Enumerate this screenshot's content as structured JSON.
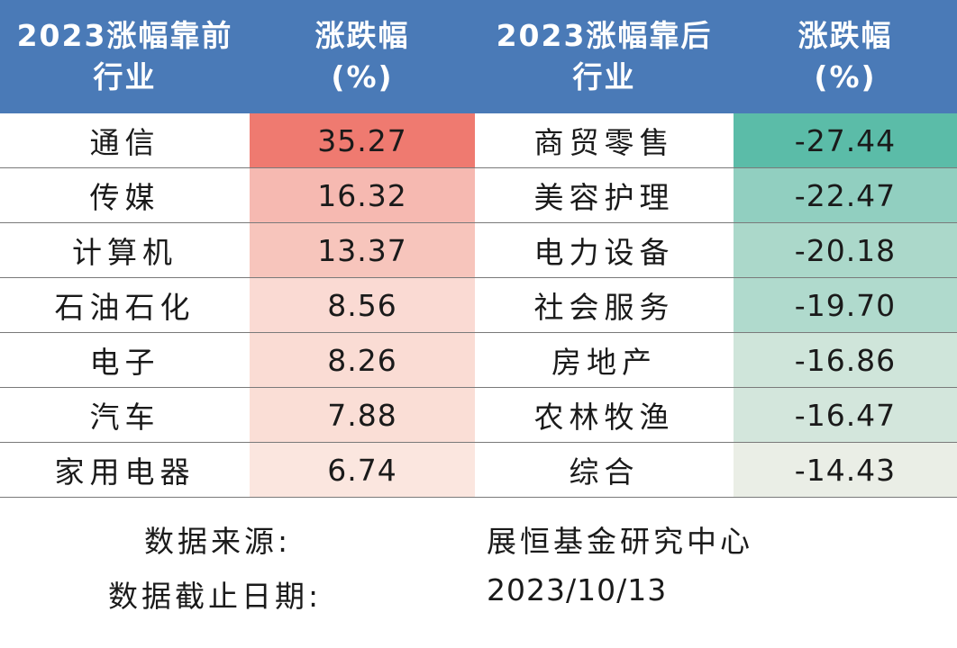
{
  "header": {
    "top_industry_line1": "2023涨幅靠前",
    "top_industry_line2": "行业",
    "top_change_line1": "涨跌幅",
    "top_change_line2": "(%)",
    "bottom_industry_line1": "2023涨幅靠后",
    "bottom_industry_line2": "行业",
    "bottom_change_line1": "涨跌幅",
    "bottom_change_line2": "(%)"
  },
  "colors": {
    "header_bg": "#4a7ab7",
    "positive_max": "#ef7a70",
    "negative_max": "#5bbca8"
  },
  "chart_data": {
    "type": "table",
    "columns": [
      "2023涨幅靠前行业",
      "涨跌幅(%)",
      "2023涨幅靠后行业",
      "涨跌幅(%)"
    ],
    "top_industries": [
      "通信",
      "传媒",
      "计算机",
      "石油石化",
      "电子",
      "汽车",
      "家用电器"
    ],
    "top_values": [
      "35.27",
      "16.32",
      "13.37",
      "8.56",
      "8.26",
      "7.88",
      "6.74"
    ],
    "bottom_industries": [
      "商贸零售",
      "美容护理",
      "电力设备",
      "社会服务",
      "房地产",
      "农林牧渔",
      "综合"
    ],
    "bottom_values": [
      "-27.44",
      "-22.47",
      "-20.18",
      "-19.70",
      "-16.86",
      "-16.47",
      "-14.43"
    ]
  },
  "footer": {
    "source_label": "数据来源:",
    "source_value": "展恒基金研究中心",
    "cutoff_label": "数据截止日期:",
    "cutoff_value": "2023/10/13"
  }
}
